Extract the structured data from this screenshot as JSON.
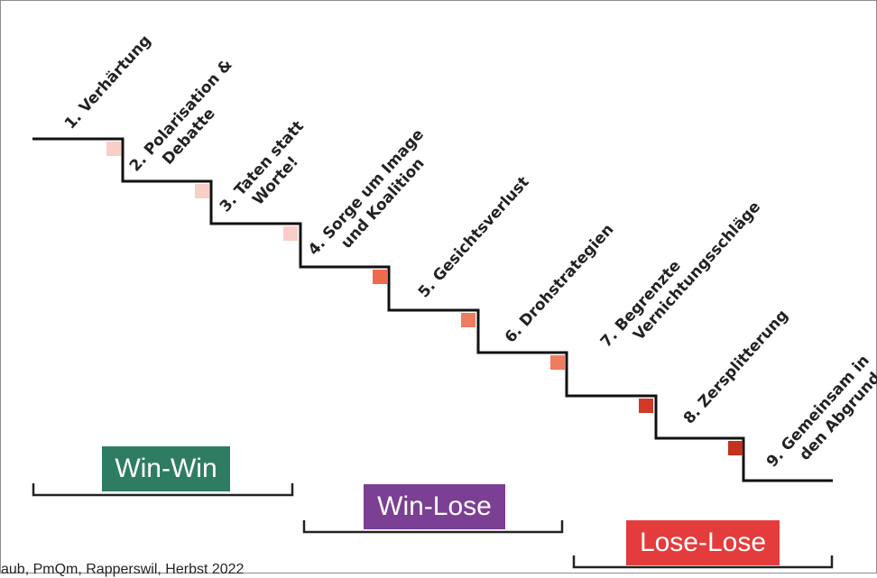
{
  "steps": [
    {
      "num": "1.",
      "lines": [
        "Verhärtung"
      ],
      "marker_color": null
    },
    {
      "num": "2.",
      "lines": [
        "Polarisation &",
        "Debatte"
      ],
      "marker_color": "#f8cfc8"
    },
    {
      "num": "3.",
      "lines": [
        "Taten statt",
        "Worte!"
      ],
      "marker_color": "#f8cfc8"
    },
    {
      "num": "4.",
      "lines": [
        "Sorge um Image",
        "und Koalition"
      ],
      "marker_color": "#f8cfc8"
    },
    {
      "num": "5.",
      "lines": [
        "Gesichtsverlust"
      ],
      "marker_color": "#ef6a4c"
    },
    {
      "num": "6.",
      "lines": [
        "Drohstrategien"
      ],
      "marker_color": "#f07c60"
    },
    {
      "num": "7.",
      "lines": [
        "Begrenzte",
        "Vernichtungsschläge"
      ],
      "marker_color": "#f07c60"
    },
    {
      "num": "8.",
      "lines": [
        "Zersplitterung"
      ],
      "marker_color": "#d13a26"
    },
    {
      "num": "9.",
      "lines": [
        "Gemeinsam in",
        "den Abgrund"
      ],
      "marker_color": "#c4321f"
    }
  ],
  "phases": [
    {
      "label": "Win-Win",
      "color": "#2e7d62"
    },
    {
      "label": "Win-Lose",
      "color": "#7b3f93"
    },
    {
      "label": "Lose-Lose",
      "color": "#e43c3c"
    }
  ],
  "footer": "aub, PmQm, Rapperswil, Herbst 2022"
}
